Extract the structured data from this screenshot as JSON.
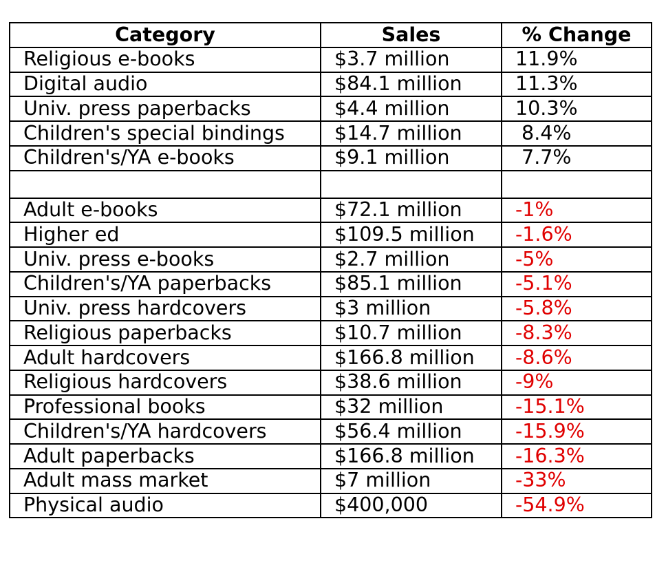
{
  "colors": {
    "text": "#000000",
    "negative": "#e00000",
    "border": "#000000",
    "background": "#ffffff"
  },
  "chart_data": {
    "type": "table",
    "columns": [
      "Category",
      "Sales",
      "% Change"
    ],
    "rows": [
      {
        "category": "Religious e-books",
        "sales": "$3.7 million",
        "change": "11.9%",
        "sales_value": 3700000,
        "change_value": 11.9
      },
      {
        "category": "Digital audio",
        "sales": "$84.1 million",
        "change": "11.3%",
        "sales_value": 84100000,
        "change_value": 11.3
      },
      {
        "category": "Univ. press paperbacks",
        "sales": "$4.4 million",
        "change": "10.3%",
        "sales_value": 4400000,
        "change_value": 10.3
      },
      {
        "category": "Children's special bindings",
        "sales": "$14.7 million",
        "change": " 8.4%",
        "sales_value": 14700000,
        "change_value": 8.4
      },
      {
        "category": "Children's/YA e-books",
        "sales": "$9.1 million",
        "change": " 7.7%",
        "sales_value": 9100000,
        "change_value": 7.7
      },
      {
        "category": "",
        "sales": "",
        "change": "",
        "spacer": true
      },
      {
        "category": "Adult e-books",
        "sales": "$72.1 million",
        "change": "-1%",
        "sales_value": 72100000,
        "change_value": -1
      },
      {
        "category": "Higher ed",
        "sales": "$109.5 million",
        "change": "-1.6%",
        "sales_value": 109500000,
        "change_value": -1.6
      },
      {
        "category": "Univ. press e-books",
        "sales": "$2.7 million",
        "change": "-5%",
        "sales_value": 2700000,
        "change_value": -5
      },
      {
        "category": "Children's/YA paperbacks",
        "sales": "$85.1 million",
        "change": "-5.1%",
        "sales_value": 85100000,
        "change_value": -5.1
      },
      {
        "category": "Univ. press hardcovers",
        "sales": "$3 million",
        "change": "-5.8%",
        "sales_value": 3000000,
        "change_value": -5.8
      },
      {
        "category": "Religious paperbacks",
        "sales": "$10.7 million",
        "change": "-8.3%",
        "sales_value": 10700000,
        "change_value": -8.3
      },
      {
        "category": "Adult hardcovers",
        "sales": "$166.8 million",
        "change": "-8.6%",
        "sales_value": 166800000,
        "change_value": -8.6
      },
      {
        "category": "Religious hardcovers",
        "sales": "$38.6 million",
        "change": "-9%",
        "sales_value": 38600000,
        "change_value": -9
      },
      {
        "category": "Professional books",
        "sales": "$32 million",
        "change": "-15.1%",
        "sales_value": 32000000,
        "change_value": -15.1
      },
      {
        "category": "Children's/YA hardcovers",
        "sales": "$56.4 million",
        "change": "-15.9%",
        "sales_value": 56400000,
        "change_value": -15.9
      },
      {
        "category": "Adult paperbacks",
        "sales": "$166.8 million",
        "change": "-16.3%",
        "sales_value": 166800000,
        "change_value": -16.3
      },
      {
        "category": "Adult mass market",
        "sales": "$7 million",
        "change": "-33%",
        "sales_value": 7000000,
        "change_value": -33
      },
      {
        "category": "Physical audio",
        "sales": "$400,000",
        "change": "-54.9%",
        "sales_value": 400000,
        "change_value": -54.9
      }
    ]
  }
}
